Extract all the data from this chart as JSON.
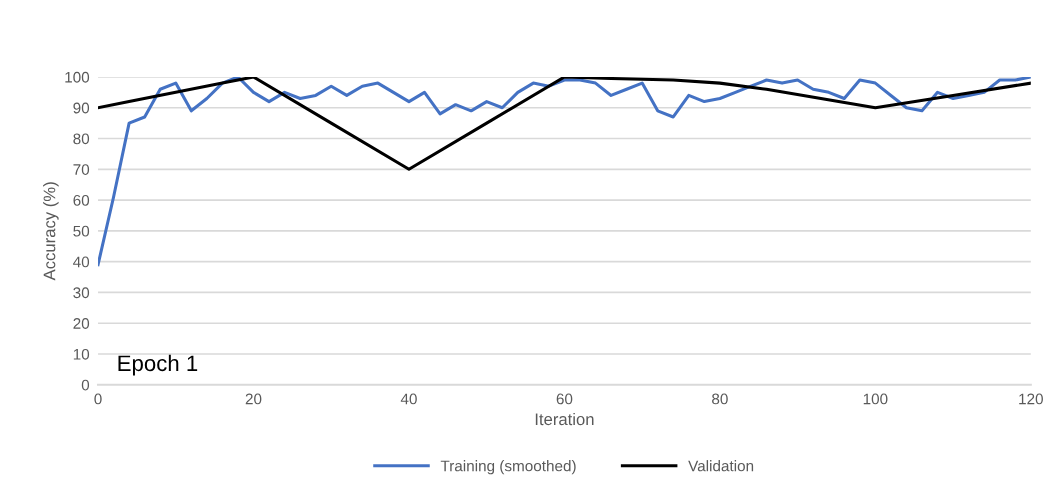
{
  "chart_data": {
    "type": "line",
    "xlabel": "Iteration",
    "ylabel": "Accuracy (%)",
    "xlim": [
      0,
      120
    ],
    "xticks": [
      0,
      20,
      40,
      60,
      80,
      100,
      120
    ],
    "ylim": [
      0,
      100
    ],
    "yticks": [
      0,
      10,
      20,
      30,
      40,
      50,
      60,
      70,
      80,
      90,
      100
    ],
    "grid": "y",
    "legend": "bottom",
    "marker": "none",
    "line_style": "solid",
    "annotations": [
      "Epoch 1"
    ],
    "series": [
      {
        "name": "Training (smoothed)",
        "color": "#4472c4",
        "x": [
          0,
          2,
          4,
          6,
          8,
          10,
          12,
          14,
          16,
          18,
          20,
          22,
          24,
          26,
          28,
          30,
          32,
          34,
          36,
          38,
          40,
          42,
          44,
          46,
          48,
          50,
          52,
          54,
          56,
          58,
          60,
          62,
          64,
          66,
          68,
          70,
          72,
          74,
          76,
          78,
          80,
          82,
          84,
          86,
          88,
          90,
          92,
          94,
          96,
          98,
          100,
          102,
          104,
          106,
          108,
          110,
          112,
          114,
          116,
          118,
          120
        ],
        "values": [
          39,
          61,
          85,
          87,
          96,
          98,
          89,
          93,
          98,
          100,
          95,
          92,
          95,
          93,
          94,
          97,
          94,
          97,
          98,
          95,
          92,
          95,
          88,
          91,
          89,
          92,
          90,
          95,
          98,
          97,
          99,
          99,
          98,
          94,
          96,
          98,
          89,
          87,
          94,
          92,
          93,
          95,
          97,
          99,
          98,
          99,
          96,
          95,
          93,
          99,
          98,
          94,
          90,
          89,
          95,
          93,
          94,
          95,
          99,
          99,
          100
        ]
      },
      {
        "name": "Validation",
        "color": "#000000",
        "x": [
          0,
          4,
          10,
          16,
          20,
          30,
          40,
          50,
          60,
          66,
          74,
          80,
          86,
          100,
          110,
          120
        ],
        "values": [
          90,
          92,
          95,
          98,
          100,
          85,
          70,
          85,
          100,
          99.5,
          99,
          98,
          96,
          90,
          94,
          98
        ]
      }
    ]
  }
}
